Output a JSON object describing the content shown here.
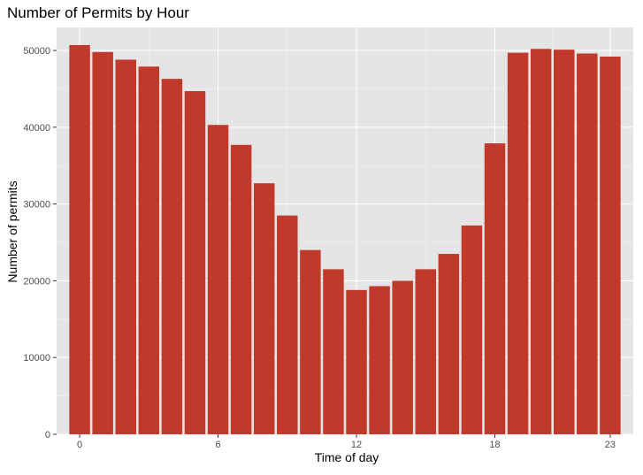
{
  "chart_data": {
    "type": "bar",
    "title": "Number of Permits by Hour",
    "xlabel": "Time of day",
    "ylabel": "Number of permits",
    "x": [
      0,
      1,
      2,
      3,
      4,
      5,
      6,
      7,
      8,
      9,
      10,
      11,
      12,
      13,
      14,
      15,
      16,
      17,
      18,
      19,
      20,
      21,
      22,
      23
    ],
    "values": [
      50700,
      49800,
      48800,
      47900,
      46300,
      44700,
      40300,
      37700,
      32700,
      28500,
      24000,
      21500,
      18800,
      19300,
      20000,
      21500,
      23500,
      27200,
      37900,
      49700,
      50200,
      50100,
      49600,
      49200
    ],
    "xlim": [
      -1,
      24
    ],
    "ylim": [
      0,
      53000
    ],
    "x_ticks": [
      0,
      6,
      12,
      18,
      23
    ],
    "x_tick_labels": [
      "0",
      "6",
      "12",
      "18",
      "23"
    ],
    "y_ticks": [
      0,
      10000,
      20000,
      30000,
      40000,
      50000
    ],
    "y_tick_labels": [
      "0",
      "10000",
      "20000",
      "30000",
      "40000",
      "50000"
    ],
    "grid": true,
    "legend": "none",
    "colors": {
      "bar": "#C0392B",
      "panel_background": "#E5E5E5",
      "grid_major": "#FFFFFF",
      "grid_minor": "#F2F2F2",
      "tick_text": "#4D4D4D",
      "tick_mark": "#333333"
    }
  }
}
